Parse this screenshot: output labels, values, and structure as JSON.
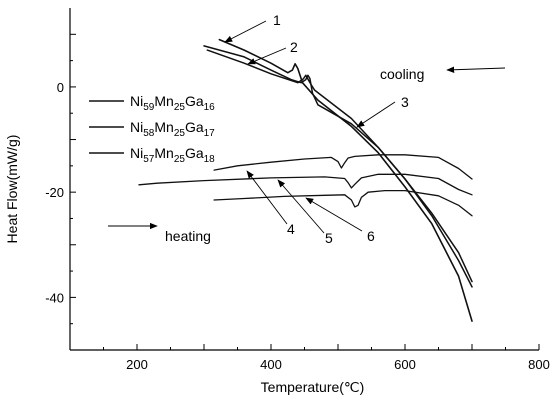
{
  "chart_data": {
    "type": "line",
    "xlabel": "Temperature(℃)",
    "ylabel": "Heat Flow(mW/g)",
    "xlim": [
      100,
      800
    ],
    "ylim": [
      -50,
      15
    ],
    "xticks": [
      200,
      400,
      600,
      800
    ],
    "yticks": [
      0,
      -20,
      -40
    ],
    "xtick_labels": [
      "200",
      "400",
      "600",
      "800"
    ],
    "ytick_labels": [
      "0",
      "-20",
      "-40"
    ],
    "legend": {
      "placement": "upper-left",
      "entries": [
        {
          "base": "Ni",
          "s1": "59",
          "m": "Mn",
          "s2": "25",
          "g": "Ga",
          "s3": "16"
        },
        {
          "base": "Ni",
          "s1": "58",
          "m": "Mn",
          "s2": "25",
          "g": "Ga",
          "s3": "17"
        },
        {
          "base": "Ni",
          "s1": "57",
          "m": "Mn",
          "s2": "25",
          "g": "Ga",
          "s3": "18"
        }
      ]
    },
    "series": [
      {
        "label": "1",
        "mode": "cooling",
        "stroke_width": 1.6,
        "x": [
          323,
          360,
          400,
          425,
          432,
          436,
          440,
          447,
          470,
          520,
          560,
          600,
          640,
          680,
          700
        ],
        "y": [
          9,
          7,
          4.5,
          2.7,
          3.2,
          4.4,
          3.5,
          0.8,
          -2.5,
          -7.5,
          -12.5,
          -19,
          -26,
          -36,
          -44.5
        ]
      },
      {
        "label": "2",
        "mode": "cooling",
        "stroke_width": 1.5,
        "x": [
          305,
          360,
          400,
          440,
          448,
          452,
          456,
          460,
          465,
          520,
          560,
          600,
          640,
          680,
          700
        ],
        "y": [
          7,
          4.5,
          2.5,
          0.8,
          1.5,
          2.2,
          1.3,
          0.4,
          -0.6,
          -6,
          -11.5,
          -17.5,
          -24,
          -31.5,
          -37
        ]
      },
      {
        "label": "3",
        "mode": "cooling",
        "stroke_width": 1.5,
        "x": [
          300,
          360,
          400,
          430,
          445,
          452,
          455,
          458,
          462,
          470,
          520,
          560,
          600,
          640,
          680,
          700
        ],
        "y": [
          7.8,
          5.7,
          3.2,
          1.4,
          0.8,
          1.4,
          2.2,
          1.6,
          -1.2,
          -3.4,
          -7,
          -11.5,
          -17.5,
          -24.5,
          -33,
          -38
        ]
      },
      {
        "label": "4",
        "mode": "heating",
        "stroke_width": 1.3,
        "x": [
          315,
          350,
          400,
          450,
          490,
          500,
          505,
          510,
          515,
          525,
          560,
          600,
          650,
          680,
          700
        ],
        "y": [
          -15.8,
          -15,
          -14.3,
          -13.7,
          -13.4,
          -14.2,
          -15.4,
          -14.4,
          -13.5,
          -13.2,
          -12.9,
          -12.9,
          -13.4,
          -15.5,
          -17.5
        ]
      },
      {
        "label": "5",
        "mode": "heating",
        "stroke_width": 1.3,
        "x": [
          203,
          230,
          300,
          400,
          480,
          510,
          515,
          520,
          525,
          535,
          560,
          600,
          650,
          680,
          700
        ],
        "y": [
          -18.6,
          -18.3,
          -17.8,
          -17.3,
          -17.1,
          -17.4,
          -18.2,
          -19.2,
          -18.5,
          -17.3,
          -16.6,
          -16.6,
          -17.4,
          -19.5,
          -20.5
        ]
      },
      {
        "label": "6",
        "mode": "heating",
        "stroke_width": 1.3,
        "x": [
          315,
          360,
          420,
          480,
          510,
          520,
          525,
          530,
          535,
          545,
          570,
          600,
          650,
          680,
          700
        ],
        "y": [
          -21.5,
          -21.2,
          -20.8,
          -20.6,
          -20.5,
          -21.5,
          -22.8,
          -22.5,
          -21,
          -20,
          -19.7,
          -19.7,
          -20.7,
          -22.5,
          -24.5
        ]
      }
    ],
    "annotations": [
      {
        "text": "1",
        "kind": "curve-label"
      },
      {
        "text": "2",
        "kind": "curve-label"
      },
      {
        "text": "3",
        "kind": "curve-label"
      },
      {
        "text": "4",
        "kind": "curve-label"
      },
      {
        "text": "5",
        "kind": "curve-label"
      },
      {
        "text": "6",
        "kind": "curve-label"
      },
      {
        "text": "cooling",
        "kind": "direction-label"
      },
      {
        "text": "heating",
        "kind": "direction-label"
      }
    ]
  }
}
